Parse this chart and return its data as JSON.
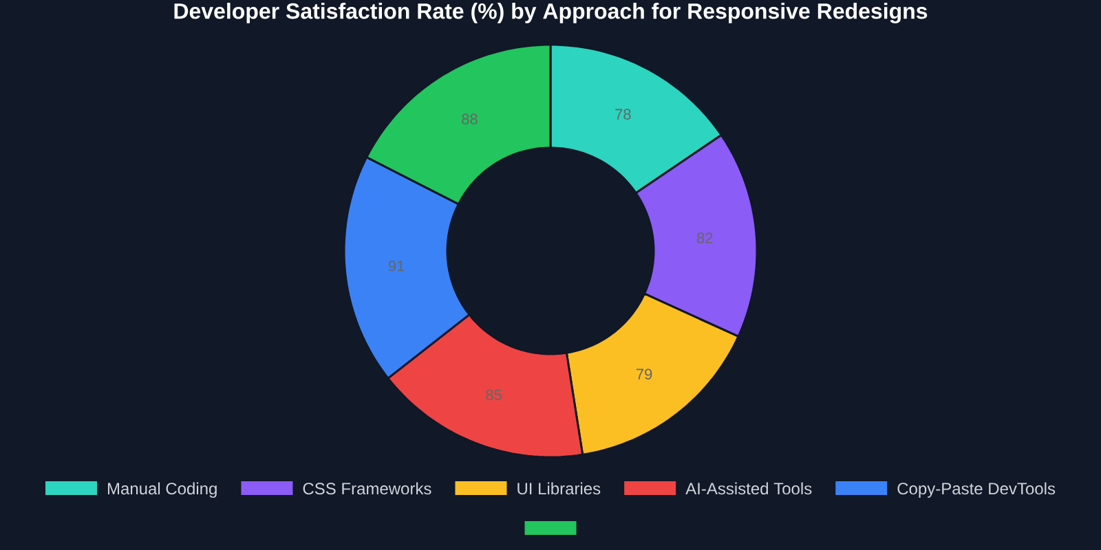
{
  "chart_data": {
    "type": "donut",
    "title": "Developer Satisfaction Rate (%) by Approach for Responsive Redesigns",
    "categories": [
      "Manual Coding",
      "CSS Frameworks",
      "UI Libraries",
      "AI-Assisted Tools",
      "Copy-Paste DevTools",
      null
    ],
    "values": [
      78,
      82,
      79,
      85,
      91,
      88
    ],
    "colors": [
      "#2dd4bf",
      "#8b5cf6",
      "#fbbf24",
      "#ef4444",
      "#3b82f6",
      "#22c55e"
    ],
    "data_labels": true,
    "legend": "bottom"
  }
}
